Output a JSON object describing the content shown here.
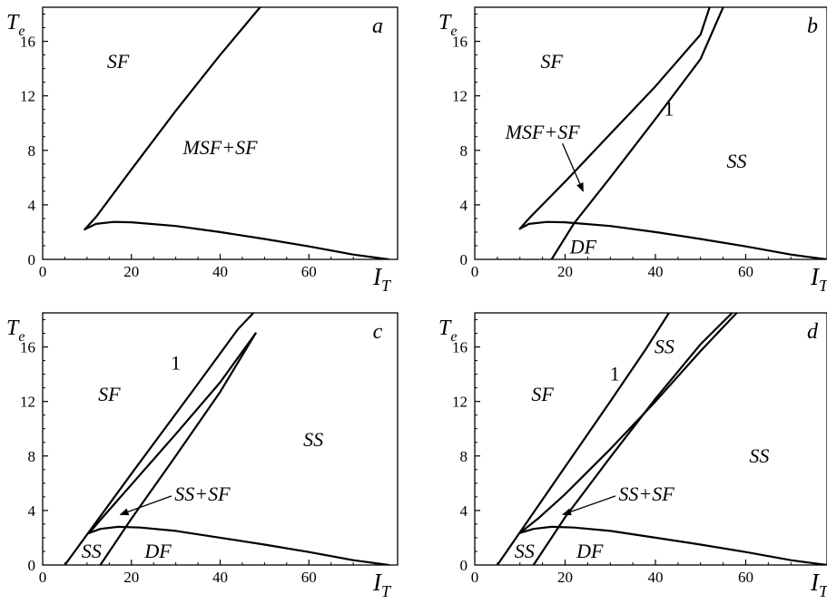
{
  "chart_data": [
    {
      "type": "line",
      "panel": "a",
      "xlabel": "I",
      "xlabel_sub": "T",
      "ylabel": "T",
      "ylabel_sub": "e",
      "xlim": [
        0,
        80
      ],
      "ylim": [
        0,
        18.5
      ],
      "xticks": [
        "0",
        "20",
        "40",
        "60"
      ],
      "yticks": [
        "0",
        "4",
        "8",
        "12",
        "16"
      ],
      "series": [
        {
          "points": [
            [
              9.5,
              2.2
            ],
            [
              12,
              3.1
            ],
            [
              20,
              6.6
            ],
            [
              30,
              10.9
            ],
            [
              40,
              15.0
            ],
            [
              49,
              18.5
            ]
          ]
        },
        {
          "points": [
            [
              9.5,
              2.2
            ],
            [
              12,
              2.6
            ],
            [
              16,
              2.75
            ],
            [
              20,
              2.72
            ],
            [
              30,
              2.45
            ],
            [
              40,
              2.0
            ],
            [
              50,
              1.5
            ],
            [
              60,
              0.95
            ],
            [
              70,
              0.35
            ],
            [
              78,
              0.0
            ]
          ]
        }
      ],
      "regions": [
        {
          "text": "SF",
          "x": 17,
          "y": 14.5
        },
        {
          "text": "MSF+SF",
          "x": 40,
          "y": 8.2
        }
      ]
    },
    {
      "type": "line",
      "panel": "b",
      "xlabel": "I",
      "xlabel_sub": "T",
      "ylabel": "T",
      "ylabel_sub": "e",
      "xlim": [
        0,
        78
      ],
      "ylim": [
        0,
        18.5
      ],
      "xticks": [
        "0",
        "20",
        "40",
        "60"
      ],
      "yticks": [
        "0",
        "4",
        "8",
        "12",
        "16"
      ],
      "series": [
        {
          "points": [
            [
              10,
              2.25
            ],
            [
              12,
              3.0
            ],
            [
              20,
              5.7
            ],
            [
              30,
              9.2
            ],
            [
              40,
              12.7
            ],
            [
              50,
              16.5
            ],
            [
              52,
              18.5
            ]
          ]
        },
        {
          "points": [
            [
              17,
              0.0
            ],
            [
              22,
              2.65
            ],
            [
              30,
              6.0
            ],
            [
              40,
              10.3
            ],
            [
              50,
              14.7
            ],
            [
              55,
              18.5
            ]
          ]
        },
        {
          "points": [
            [
              10,
              2.25
            ],
            [
              12,
              2.6
            ],
            [
              16,
              2.75
            ],
            [
              20,
              2.72
            ],
            [
              30,
              2.45
            ],
            [
              40,
              2.0
            ],
            [
              50,
              1.5
            ],
            [
              60,
              0.95
            ],
            [
              70,
              0.35
            ],
            [
              78,
              0.0
            ]
          ]
        }
      ],
      "regions": [
        {
          "text": "SF",
          "x": 17,
          "y": 14.5
        },
        {
          "text": "SS",
          "x": 58,
          "y": 7.2
        },
        {
          "text": "DF",
          "x": 24,
          "y": 0.9
        }
      ],
      "annotations": [
        {
          "text": "1",
          "x": 43,
          "y": 11.0,
          "italic": false
        },
        {
          "text": "MSF+SF",
          "x": 15,
          "y": 9.3,
          "arrow_to": [
            24,
            5.0
          ]
        }
      ]
    },
    {
      "type": "line",
      "panel": "c",
      "xlabel": "I",
      "xlabel_sub": "T",
      "ylabel": "T",
      "ylabel_sub": "e",
      "xlim": [
        0,
        80
      ],
      "ylim": [
        0,
        18.5
      ],
      "xticks": [
        "0",
        "20",
        "40",
        "60"
      ],
      "yticks": [
        "0",
        "4",
        "8",
        "12",
        "16"
      ],
      "series": [
        {
          "points": [
            [
              5,
              0.0
            ],
            [
              20,
              6.7
            ],
            [
              35,
              13.3
            ],
            [
              44,
              17.3
            ],
            [
              47.5,
              18.5
            ]
          ]
        },
        {
          "points": [
            [
              10.5,
              2.35
            ],
            [
              13,
              3.3
            ],
            [
              20,
              5.9
            ],
            [
              30,
              9.6
            ],
            [
              40,
              13.4
            ],
            [
              48,
              17.0
            ]
          ]
        },
        {
          "points": [
            [
              13,
              0.0
            ],
            [
              20,
              3.4
            ],
            [
              30,
              8.0
            ],
            [
              40,
              12.7
            ],
            [
              48,
              17.0
            ]
          ]
        },
        {
          "points": [
            [
              10.5,
              2.35
            ],
            [
              13,
              2.65
            ],
            [
              17,
              2.8
            ],
            [
              22,
              2.75
            ],
            [
              30,
              2.5
            ],
            [
              40,
              2.0
            ],
            [
              50,
              1.5
            ],
            [
              60,
              0.95
            ],
            [
              70,
              0.35
            ],
            [
              78,
              0.0
            ]
          ]
        }
      ],
      "regions": [
        {
          "text": "SF",
          "x": 15,
          "y": 12.5
        },
        {
          "text": "SS",
          "x": 61,
          "y": 9.2
        },
        {
          "text": "SS",
          "x": 11,
          "y": 1.0
        },
        {
          "text": "DF",
          "x": 26,
          "y": 1.0
        }
      ],
      "annotations": [
        {
          "text": "1",
          "x": 30,
          "y": 14.8,
          "italic": false
        },
        {
          "text": "SS+SF",
          "x": 36,
          "y": 5.2,
          "arrow_to": [
            17.5,
            3.7
          ]
        }
      ]
    },
    {
      "type": "line",
      "panel": "d",
      "xlabel": "I",
      "xlabel_sub": "T",
      "ylabel": "T",
      "ylabel_sub": "e",
      "xlim": [
        0,
        78
      ],
      "ylim": [
        0,
        18.5
      ],
      "xticks": [
        "0",
        "20",
        "40",
        "60"
      ],
      "yticks": [
        "0",
        "4",
        "8",
        "12",
        "16"
      ],
      "series": [
        {
          "points": [
            [
              5,
              0.0
            ],
            [
              20,
              7.2
            ],
            [
              30,
              12.0
            ],
            [
              38,
              15.9
            ],
            [
              43,
              18.5
            ]
          ]
        },
        {
          "points": [
            [
              10,
              2.35
            ],
            [
              14,
              3.4
            ],
            [
              20,
              5.2
            ],
            [
              30,
              8.5
            ],
            [
              40,
              12.0
            ],
            [
              50,
              15.7
            ],
            [
              58,
              18.5
            ]
          ]
        },
        {
          "points": [
            [
              13,
              0.0
            ],
            [
              20,
              3.5
            ],
            [
              30,
              7.9
            ],
            [
              40,
              12.2
            ],
            [
              50,
              16.2
            ],
            [
              57,
              18.5
            ]
          ]
        },
        {
          "points": [
            [
              10,
              2.35
            ],
            [
              13,
              2.65
            ],
            [
              17,
              2.8
            ],
            [
              22,
              2.75
            ],
            [
              30,
              2.5
            ],
            [
              40,
              2.0
            ],
            [
              50,
              1.5
            ],
            [
              60,
              0.95
            ],
            [
              70,
              0.35
            ],
            [
              78,
              0.0
            ]
          ]
        }
      ],
      "regions": [
        {
          "text": "SF",
          "x": 15,
          "y": 12.5
        },
        {
          "text": "SS",
          "x": 42,
          "y": 16.0
        },
        {
          "text": "SS",
          "x": 63,
          "y": 8.0
        },
        {
          "text": "SS",
          "x": 11,
          "y": 1.0
        },
        {
          "text": "DF",
          "x": 25.5,
          "y": 1.0
        }
      ],
      "annotations": [
        {
          "text": "1",
          "x": 31,
          "y": 14.0,
          "italic": false
        },
        {
          "text": "SS+SF",
          "x": 38,
          "y": 5.2,
          "arrow_to": [
            19.5,
            3.7
          ]
        }
      ]
    }
  ]
}
